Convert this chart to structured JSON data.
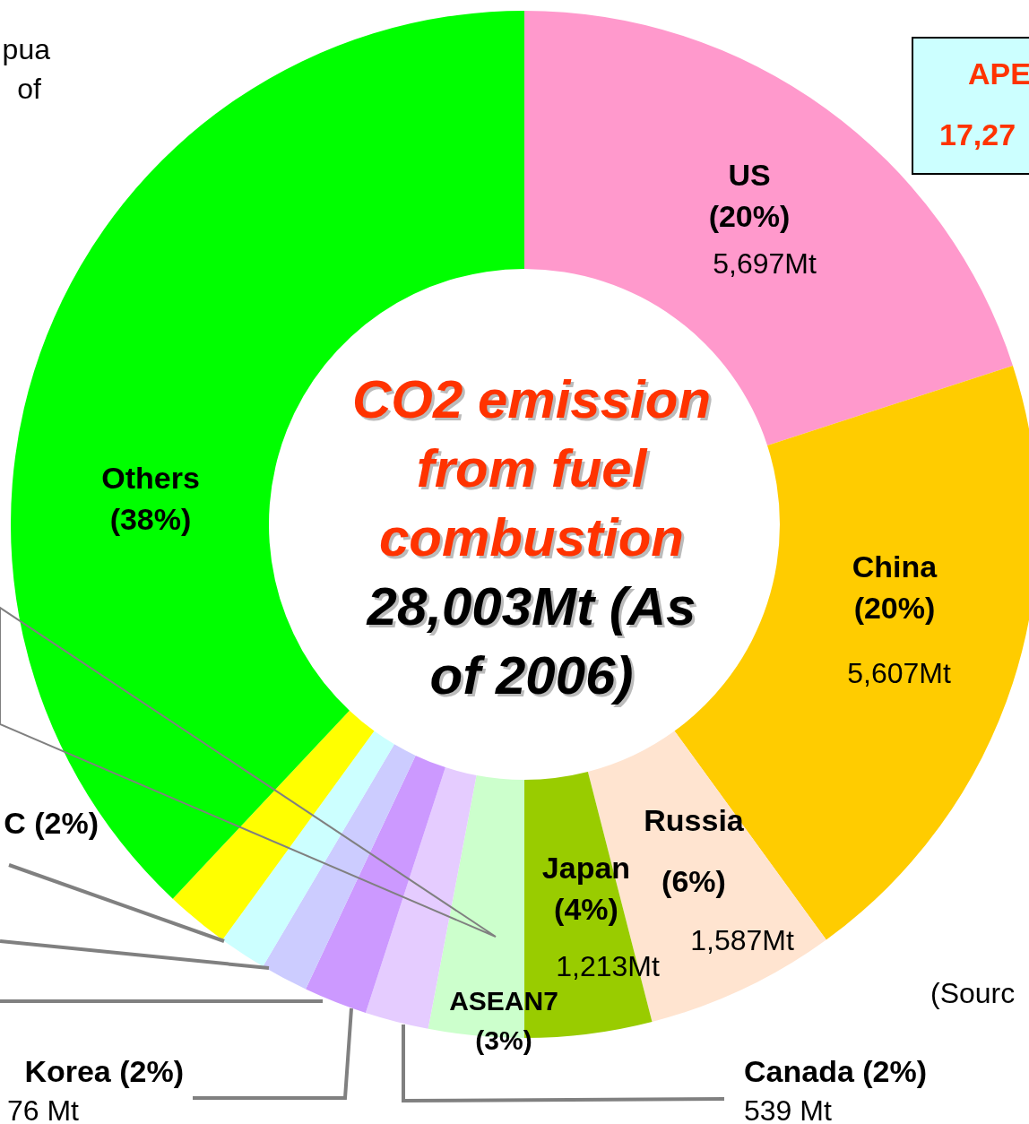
{
  "chart_data": {
    "type": "donut",
    "title": "CO2 emission from fuel combustion",
    "subtitle": "28,003Mt (As of 2006)",
    "categories": [
      "US",
      "China",
      "Russia",
      "Japan",
      "ASEAN7",
      "Canada",
      "Korea",
      null,
      null,
      "C",
      "Others"
    ],
    "values": [
      20,
      20,
      6,
      4,
      3,
      2,
      2,
      1.5,
      1.5,
      2,
      38
    ],
    "colors": [
      "#ff99cc",
      "#ffcc00",
      "#ffe4d0",
      "#99cc00",
      "#ccffcc",
      "#e5ccff",
      "#cc99ff",
      "#ccccff",
      "#ccffff",
      "#ffff00",
      "#00ff00"
    ],
    "value_labels": [
      "(20%)",
      "(20%)",
      "(6%)",
      "(4%)",
      "(3%)",
      "(2%)",
      "(2%)",
      null,
      null,
      "(2%)",
      "(38%)"
    ],
    "annotations": [
      "5,697Mt",
      "5,607Mt",
      "1,587Mt",
      "1,213Mt",
      "539 Mt",
      "76 Mt",
      "pua",
      "of",
      "APE",
      "17,27",
      "(Sourc"
    ]
  }
}
